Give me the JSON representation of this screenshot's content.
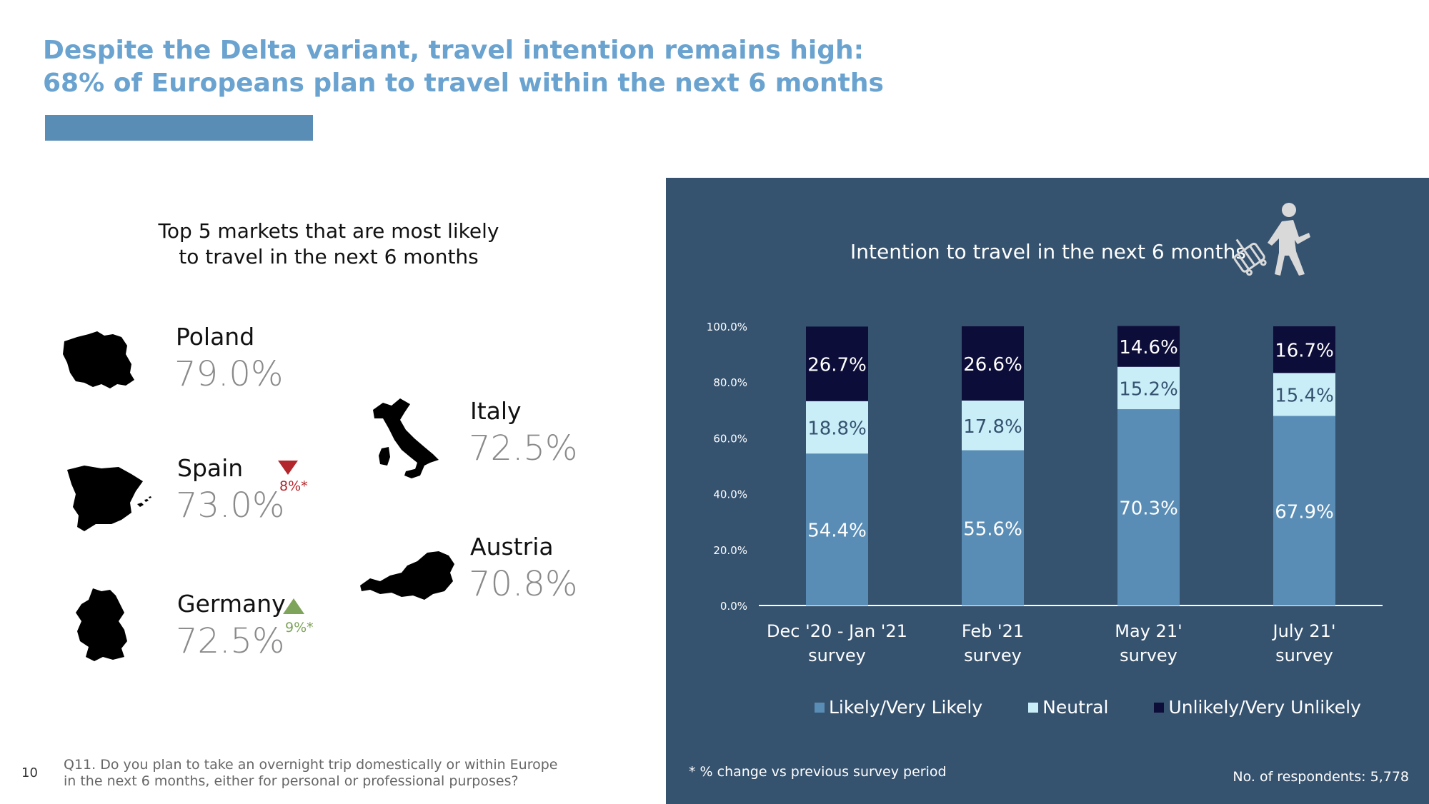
{
  "header": {
    "title_line1": "Despite the Delta variant, travel intention remains high:",
    "title_line2": "68% of Europeans plan to travel within the next 6 months"
  },
  "left": {
    "subtitle_line1": "Top 5 markets that are most likely",
    "subtitle_line2": "to travel in the next 6 months",
    "markets": [
      {
        "name": "Poland",
        "value": "79.0%"
      },
      {
        "name": "Spain",
        "value": "73.0%",
        "change": "8%*",
        "direction": "down"
      },
      {
        "name": "Germany",
        "value": "72.5%",
        "change": "9%*",
        "direction": "up"
      },
      {
        "name": "Italy",
        "value": "72.5%"
      },
      {
        "name": "Austria",
        "value": "70.8%"
      }
    ]
  },
  "colors": {
    "likely": "#5a8db5",
    "neutral": "#c9eef8",
    "unlikely": "#0d0d3a",
    "panel": "#35526f",
    "down": "#b3262b",
    "up": "#7ea35a"
  },
  "chart_data": {
    "type": "bar",
    "stacked": true,
    "title": "Intention to travel in the next 6 months",
    "categories": [
      [
        "Dec '20 - Jan '21",
        "survey"
      ],
      [
        "Feb '21",
        "survey"
      ],
      [
        "May 21'",
        "survey"
      ],
      [
        "July 21'",
        "survey"
      ]
    ],
    "series": [
      {
        "name": "Likely/Very Likely",
        "values": [
          54.4,
          55.6,
          70.3,
          67.9
        ],
        "labels": [
          "54.4%",
          "55.6%",
          "70.3%",
          "67.9%"
        ]
      },
      {
        "name": "Neutral",
        "values": [
          18.8,
          17.8,
          15.2,
          15.4
        ],
        "labels": [
          "18.8%",
          "17.8%",
          "15.2%",
          "15.4%"
        ]
      },
      {
        "name": "Unlikely/Very Unlikely",
        "values": [
          26.7,
          26.6,
          14.6,
          16.7
        ],
        "labels": [
          "26.7%",
          "26.6%",
          "14.6%",
          "16.7%"
        ]
      }
    ],
    "yticks": [
      "0.0%",
      "20.0%",
      "40.0%",
      "60.0%",
      "80.0%",
      "100.0%"
    ],
    "ylim": [
      0,
      100
    ],
    "grid": false,
    "legend": "bottom"
  },
  "footer": {
    "change_note": "* % change vs previous survey period",
    "respondents": "No. of respondents: 5,778",
    "page_number": "10",
    "question_line1": "Q11. Do you plan to take an overnight trip domestically or within Europe",
    "question_line2": "in the next 6 months, either for personal or professional purposes?"
  }
}
